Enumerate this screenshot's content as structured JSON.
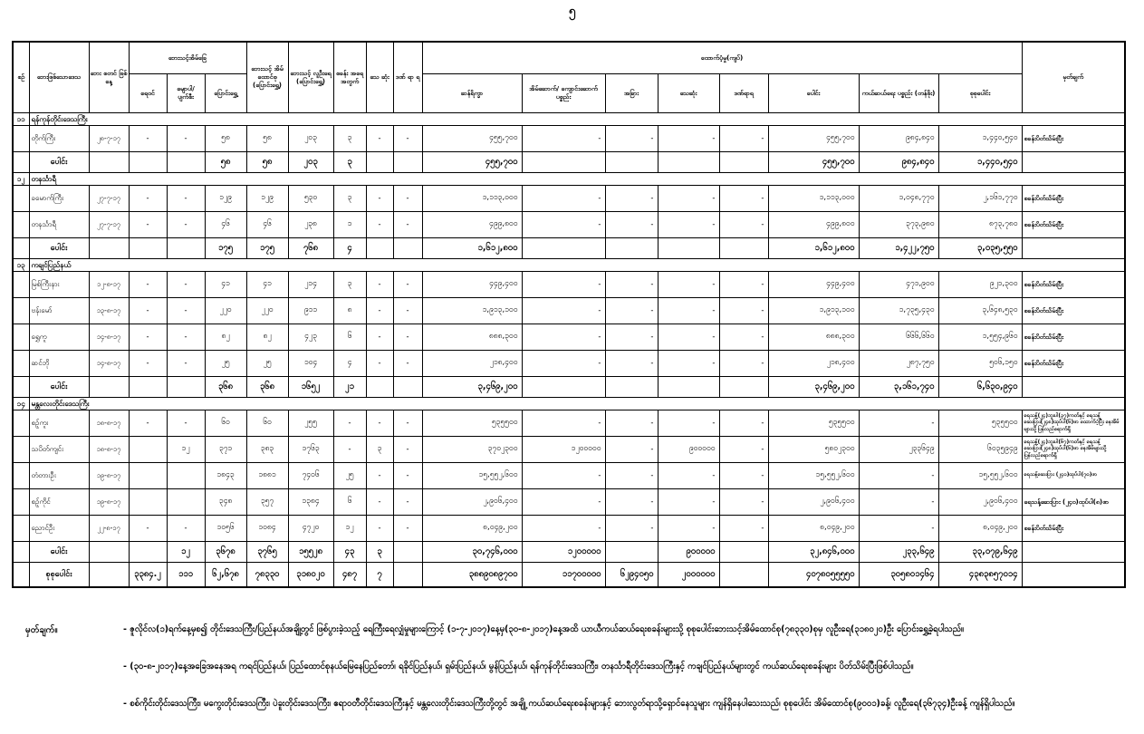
{
  "page": {
    "number": "၅"
  },
  "table": {
    "header": {
      "col_serial": "စဉ်",
      "col_area": "ဘေးဖြစ်သောဒေသ",
      "col_date": "ဘေး စတင် ဖြစ်နေ့",
      "group_houses": "ဘေးသင့်အိမ်ခြေ",
      "col_flooded": "ရေဝင်",
      "col_washed": "မျောပါ/ ပျက်စီး",
      "col_moved": "ပြောင်းရွှေ့",
      "col_households": "ဘေးသင့် အိမ် ထောင်စု (ပြောင်းရွှေ့)",
      "col_people": "ဘေးသင့် လူဦးရေ (ပြောင်းရွှေ့)",
      "col_camps": "စခန်း အရေ အတွက်",
      "col_deaths": "သေ ဆုံး",
      "col_injured": "ဒဏ် ရာ ရ",
      "group_support": "ထောက်ပံ့မှု(ကျပ်)",
      "col_rice": "ဆန်ရိက္ခာ",
      "col_construction": "အိမ်ဆောက်/ ကျောင်းဆောက် ပစ္စည်း",
      "col_other": "အခြား",
      "col_death_support": "သေဆုံး",
      "col_injury_support": "ဒဏ်ရာရ",
      "col_total": "ပေါင်း",
      "col_relief": "ကယ်ဆယ်ရေး ပစ္စည်း (တန်ဖိုး)",
      "col_grand": "စုစုပေါင်း",
      "col_remark": "မှတ်ချက်"
    },
    "sections": [
      {
        "no": "၁၁",
        "title": "ရန်ကုန်တိုင်းဒေသကြီး",
        "rows": [
          {
            "name": "တိုက်ကြီး",
            "date": "၂၈-၇-၁၇",
            "flooded": "-",
            "damaged": "-",
            "moved": "၅၈",
            "households": "၅၈",
            "people": "၂၀၃",
            "camps": "၃",
            "deaths": "-",
            "injured": "-",
            "rice": "၄၅၅,၇၀၀",
            "construction": "-",
            "other": "-",
            "death_support": "-",
            "injury_support": "-",
            "total": "၄၅၅,၇၀၀",
            "relief": "၉၈၄,၈၄၀",
            "grand": "၁,၄၄၀,၅၄၀",
            "remark": "စခန်းပိတ်သိမ်းပြီး"
          }
        ],
        "total": {
          "name": "ပေါင်း",
          "date": "",
          "flooded": "",
          "damaged": "",
          "moved": "၅၈",
          "households": "၅၈",
          "people": "၂၀၃",
          "camps": "၃",
          "deaths": "",
          "injured": "",
          "rice": "၄၅၅,၇၀၀",
          "construction": "",
          "other": "",
          "death_support": "",
          "injury_support": "",
          "total": "၄၅၅,၇၀၀",
          "relief": "၉၈၄,၈၄၀",
          "grand": "၁,၄၄၀,၅၄၀",
          "remark": ""
        }
      },
      {
        "no": "၁၂",
        "title": "တနင်္သာရီ",
        "rows": [
          {
            "name": "ခမောက်ကြီး",
            "date": "၂၇-၇-၁၇",
            "flooded": "-",
            "damaged": "-",
            "moved": "၁၂၉",
            "households": "၁၂၉",
            "people": "၅၃၀",
            "camps": "၃",
            "deaths": "-",
            "injured": "-",
            "rice": "၁,၁၁၃,၀၀၀",
            "construction": "-",
            "other": "-",
            "death_support": "-",
            "injury_support": "-",
            "total": "၁,၁၁၃,၀၀၀",
            "relief": "၁,၀၄၈,၇၇၀",
            "grand": "၂,၁၆၁,၇၇၀",
            "remark": "စခန်းပိတ်သိမ်းပြီး"
          },
          {
            "name": "တနင်္သာရီ",
            "date": "၂၇-၇-၁၇",
            "flooded": "-",
            "damaged": "-",
            "moved": "၄၆",
            "households": "၄၆",
            "people": "၂၃၈",
            "camps": "၁",
            "deaths": "-",
            "injured": "-",
            "rice": "၄၉၉,၈၀၀",
            "construction": "-",
            "other": "-",
            "death_support": "-",
            "injury_support": "-",
            "total": "၄၉၉,၈၀၀",
            "relief": "၃၇၃,၉၈၀",
            "grand": "၈၇၃,၇၈၀",
            "remark": "စခန်းပိတ်သိမ်းပြီး"
          }
        ],
        "total": {
          "name": "ပေါင်း",
          "date": "",
          "flooded": "",
          "damaged": "",
          "moved": "၁၇၅",
          "households": "၁၇၅",
          "people": "၇၆၈",
          "camps": "၄",
          "deaths": "",
          "injured": "",
          "rice": "၁,၆၁၂,၈၀၀",
          "construction": "",
          "other": "",
          "death_support": "",
          "injury_support": "",
          "total": "၁,၆၁၂,၈၀၀",
          "relief": "၁,၄၂၂,၇၅၀",
          "grand": "၃,၀၃၅,၅၅၀",
          "remark": ""
        }
      },
      {
        "no": "၁၃",
        "title": "ကချင်ပြည်နယ်",
        "rows": [
          {
            "name": "မြစ်ကြီးနား",
            "date": "၁၂-၈-၁၇",
            "flooded": "-",
            "damaged": "-",
            "moved": "၄၁",
            "households": "၄၁",
            "people": "၂၁၄",
            "camps": "၃",
            "deaths": "-",
            "injured": "-",
            "rice": "၄၄၉,၄၀၀",
            "construction": "-",
            "other": "-",
            "death_support": "-",
            "injury_support": "-",
            "total": "၄၄၉,၄၀၀",
            "relief": "၄၇၁,၉၀၀",
            "grand": "၉၂၁,၃၀၀",
            "remark": "စခန်းပိတ်သိမ်းပြီး"
          },
          {
            "name": "ဗန်းမော်",
            "date": "၁၃-၈-၁၇",
            "flooded": "-",
            "damaged": "-",
            "moved": "၂၂၀",
            "households": "၂၂၀",
            "people": "၉၁၁",
            "camps": "၈",
            "deaths": "-",
            "injured": "-",
            "rice": "၁,၉၁၃,၁၀၀",
            "construction": "-",
            "other": "-",
            "death_support": "-",
            "injury_support": "-",
            "total": "၁,၉၁၃,၁၀၀",
            "relief": "၁,၇၃၅,၄၃၀",
            "grand": "၃,၆၄၈,၅၃၀",
            "remark": "စခန်းပိတ်သိမ်းပြီး"
          },
          {
            "name": "ရွှေကူ",
            "date": "၁၄-၈-၁၇",
            "flooded": "-",
            "damaged": "-",
            "moved": "၈၂",
            "households": "၈၂",
            "people": "၄၂၃",
            "camps": "၆",
            "deaths": "-",
            "injured": "-",
            "rice": "၈၈၈,၃၀၀",
            "construction": "-",
            "other": "-",
            "death_support": "-",
            "injury_support": "-",
            "total": "၈၈၈,၃၀၀",
            "relief": "၆၆၆,၆၆၀",
            "grand": "၁,၅၅၄,၉၆၀",
            "remark": "စခန်းပိတ်သိမ်းပြီး"
          },
          {
            "name": "ဆင်ဘို",
            "date": "၁၄-၈-၁၇",
            "flooded": "-",
            "damaged": "-",
            "moved": "၂၅",
            "households": "၂၅",
            "people": "၁၀၄",
            "camps": "၄",
            "deaths": "-",
            "injured": "-",
            "rice": "၂၁၈,၄၀၀",
            "construction": "-",
            "other": "-",
            "death_support": "-",
            "injury_support": "-",
            "total": "၂၁၈,၄၀၀",
            "relief": "၂၈၇,၇၅၀",
            "grand": "၅၀၆,၁၅၀",
            "remark": "စခန်းပိတ်သိမ်းပြီး"
          }
        ],
        "total": {
          "name": "ပေါင်း",
          "date": "",
          "flooded": "",
          "damaged": "",
          "moved": "၃၆၈",
          "households": "၃၆၈",
          "people": "၁၆၅၂",
          "camps": "၂၁",
          "deaths": "",
          "injured": "",
          "rice": "၃,၄၆၉,၂၀၀",
          "construction": "",
          "other": "",
          "death_support": "",
          "injury_support": "",
          "total": "၃,၄၆၉,၂၀၀",
          "relief": "၃,၁၆၁,၇၄၀",
          "grand": "၆,၆၃၀,၉၄၀",
          "remark": ""
        }
      },
      {
        "no": "၁၄",
        "title": "မန္တလေးတိုင်းဒေသကြီး",
        "rows": [
          {
            "name": "စဉ့်ကူး",
            "date": "၁၈-၈-၁၇",
            "flooded": "-",
            "damaged": "-",
            "moved": "၆၀",
            "households": "၆၀",
            "people": "၂၅၅",
            "camps": "-",
            "deaths": "-",
            "injured": "-",
            "rice": "၅၃၅၅၀၀",
            "construction": "-",
            "other": "-",
            "death_support": "-",
            "injury_support": "-",
            "total": "၅၃၅၅၀၀",
            "relief": "-",
            "grand": "၅၃၅၅၀၀",
            "remark": "ရေသန့်(၂၄)ဘူးပါ(၃၇)ကတ်နှင့် ရေသန့်ဆေးပြား(၂၄၈)ထုပ်ပါ(၆)ဖာ ထောက်ပံ့ပြီး နေအိမ်များသို့ပြန်လည်ရောက်ရှိ"
          },
          {
            "name": "သပိတ်ကျင်း",
            "date": "၁၈-၈-၁၇",
            "flooded": "",
            "damaged": "၁၂",
            "moved": "၃၇၁",
            "households": "၃၈၃",
            "people": "၁၇၆၃",
            "camps": "-",
            "deaths": "၃",
            "injured": "-",
            "rice": "၃၇၀၂၃၀၀",
            "construction": "၁၂၀၀၀၀၀",
            "other": "-",
            "death_support": "၉၀၀၀၀၀",
            "injury_support": "-",
            "total": "၅၈၀၂၃၀၀",
            "relief": "၂၃၃၆၄၉",
            "grand": "၆၀၃၅၉၄၉",
            "remark": "ရေသန့်(၂၄)ဘူးပါ(၆၇)ကတ်နှင့် ရေသန့်ဆေးပြား(၂၄၈)ထုပ်ပါ(၆)ဖာ နေအိမ်များသို့ပြန်လည်ရောက်ရှိ"
          },
          {
            "name": "တံတားဦး",
            "date": "၁၉-၈-၁၇",
            "flooded": "",
            "damaged": "",
            "moved": "၁၈၄၃",
            "households": "၁၈၈၁",
            "people": "၇၄၀၆",
            "camps": "၂၅",
            "deaths": "-",
            "injured": "-",
            "rice": "၁၅,၅၅၂,၆၀၀",
            "construction": "-",
            "other": "-",
            "death_support": "-",
            "injury_support": "-",
            "total": "၁၅,၅၅၂,၆၀၀",
            "relief": "-",
            "grand": "၁၅,၅၅၂,၆၀၀",
            "remark": "ရေသန့်ဆေးပြား (၂၄၀)ထုပ်ပါ(၇၀)ဖာ"
          },
          {
            "name": "စဉ့်ကိုင်",
            "date": "၁၉-၈-၁၇",
            "flooded": "",
            "damaged": "",
            "moved": "၃၄၈",
            "households": "၃၅၇",
            "people": "၁၃၈၄",
            "camps": "၆",
            "deaths": "-",
            "injured": "-",
            "rice": "၂,၉၀၆,၄၀၀",
            "construction": "-",
            "other": "-",
            "death_support": "-",
            "injury_support": "-",
            "total": "၂,၉၀၆,၄၀၀",
            "relief": "-",
            "grand": "၂,၉၀၆,၄၀၀",
            "remark": "ရေသန့်ဆေးပြား (၂၄၀)ထုပ်ပါ(၈)ဖာ"
          },
          {
            "name": "ညောင်ဦး",
            "date": "၂၂-၈-၁၇",
            "flooded": "-",
            "damaged": "-",
            "moved": "၁၀၅၆",
            "households": "၁၀၈၄",
            "people": "၄၇၂၀",
            "camps": "၁၂",
            "deaths": "-",
            "injured": "-",
            "rice": "၈,၀၄၉,၂၀၀",
            "construction": "-",
            "other": "-",
            "death_support": "-",
            "injury_support": "-",
            "total": "၈,၀၄၉,၂၀၀",
            "relief": "-",
            "grand": "၈,၀၄၉,၂၀၀",
            "remark": "စခန်းပိတ်သိမ်းပြီး"
          }
        ],
        "total": {
          "name": "ပေါင်း",
          "date": "",
          "flooded": "",
          "damaged": "၁၂",
          "moved": "၃၆၇၈",
          "households": "၃၇၆၅",
          "people": "၁၅၅၂၈",
          "camps": "၄၃",
          "deaths": "၃",
          "injured": "",
          "rice": "၃၀,၇၄၆,၀၀၀",
          "construction": "၁၂၀၀၀၀၀",
          "other": "",
          "death_support": "၉၀၀၀၀၀",
          "injury_support": "",
          "total": "၃၂,၈၄၆,၀၀၀",
          "relief": "၂၃၃,၆၄၉",
          "grand": "၃၃,၀၇၉,၆၄၉",
          "remark": ""
        }
      }
    ],
    "grand_total": {
      "name": "စုစုပေါင်း",
      "date": "",
      "flooded": "၃၃၈၄.၂",
      "damaged": "၁၁၁",
      "moved": "၆၂,၆၇၈",
      "households": "၇၈၃၃၀",
      "people": "၃၁၈၀၂၀",
      "camps": "၄၈၇",
      "deaths": "၇",
      "injured": "",
      "rice": "၃၈၈၉၀၈၉၇၀၀",
      "construction": "၁၁၇၀၀၀၀၀",
      "other": "၆၂၉၄၀၅၀",
      "death_support": "၂၀၀၀၀၀၀",
      "injury_support": "",
      "total": "၄၀၇၈၀၅၅၅၅၀",
      "relief": "၃၀၅၈၀၁၄၆၄",
      "grand": "၄၃၈၃၈၅၇၀၁၄",
      "remark": ""
    }
  },
  "notes": {
    "label": "မှတ်ချက်။",
    "items": [
      "- ဇူလိုင်လ(၁)ရက်နေ့မှစ၍ တိုင်းဒေသကြီး/ပြည်နယ်အချို့တွင် ဖြစ်ပွားခဲ့သည့် ရေကြီးရေလျှံမှုများကြောင့် (၁-၇-၂၀၁၇)နေ့မှ(၃၀-၈-၂၀၁၇)နေ့အထိ ယာယီကယ်ဆယ်ရေးစခန်းများသို့ စုစုပေါင်းဘေးသင့်အိမ်ထောင်စု(၇၈၃၃၀)စုမှ  လူဦးရေ(၃၁၈၀၂၀)ဦး ပြောင်းရွှေ့ခဲ့ရပါသည်။",
      "- (၃၀-၈-၂၀၁၇)နေ့အခြေအနေအရ ကရင်ပြည်နယ်၊ ပြည်ထောင်စုနယ်မြေနေပြည်တော်၊ ရခိုင်ပြည်နယ်၊ ရှမ်းပြည်နယ်၊ မွန်ပြည်နယ်၊ ရန်ကုန်တိုင်းဒေသကြီး၊ တနင်္သာရီတိုင်းဒေသကြီးနှင့် ကချင်ပြည်နယ်များတွင် ကယ်ဆယ်ရေးစခန်းများ ပိတ်သိမ်းပြီးဖြစ်ပါသည်။",
      "- စစ်ကိုင်းတိုင်းဒေသကြီး၊ မကွေးတိုင်းဒေသကြီး၊ ပဲခူးတိုင်းဒေသကြီး၊ ဧရာဝတီတိုင်းဒေသကြီးနှင့် မန္တလေးတိုင်းဒေသကြီးတို့တွင် အချို့ ကယ်ဆယ်ရေးစခန်းများနှင့် ဘေးလွတ်ရာသို့ရှောင်နေသူများ ကျန်ရှိနေပါသေးသည်၊ စုစုပေါင်း အိမ်ထောင်စု(၉၀၀၁)ခန့်၊ လူဦးရေ(၃၆၇၃၄)ဦးခန့် ကျန်ရှိပါသည်။"
    ]
  }
}
